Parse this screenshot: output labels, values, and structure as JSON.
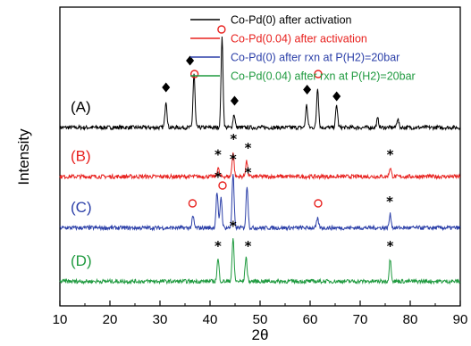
{
  "chart_data": {
    "type": "line",
    "title": "",
    "xlabel": "2θ",
    "ylabel": "Intensity",
    "xlim": [
      10,
      90
    ],
    "x_ticks": [
      "10",
      "20",
      "30",
      "40",
      "50",
      "60",
      "70",
      "80",
      "90"
    ],
    "grid": false,
    "legend_position": "top-right",
    "series": [
      {
        "name": "Co-Pd(0) after activation",
        "label": "(A)",
        "color": "#000000",
        "baseline": 4.0,
        "peaks": [
          [
            31.2,
            0.6
          ],
          [
            36.8,
            1.2
          ],
          [
            42.4,
            2.0
          ],
          [
            44.8,
            0.3
          ],
          [
            59.3,
            0.5
          ],
          [
            61.5,
            0.9
          ],
          [
            65.3,
            0.5
          ],
          [
            73.5,
            0.2
          ],
          [
            77.5,
            0.2
          ]
        ],
        "markers": [
          {
            "symbol": "◆",
            "x": 31.2,
            "level": 0.9
          },
          {
            "symbol": "◆",
            "x": 36.0,
            "level": 1.5
          },
          {
            "symbol": "o",
            "x": 36.9,
            "level": 1.2
          },
          {
            "symbol": "o",
            "x": 42.3,
            "level": 2.2
          },
          {
            "symbol": "◆",
            "x": 44.9,
            "level": 0.6
          },
          {
            "symbol": "◆",
            "x": 59.4,
            "level": 0.85
          },
          {
            "symbol": "o",
            "x": 61.6,
            "level": 1.2
          },
          {
            "symbol": "◆",
            "x": 65.3,
            "level": 0.7
          }
        ]
      },
      {
        "name": "Co-Pd(0.04) after activation",
        "label": "(B)",
        "color": "#e8221f",
        "baseline": 2.9,
        "peaks": [
          [
            41.6,
            0.2
          ],
          [
            44.6,
            0.55
          ],
          [
            47.3,
            0.35
          ],
          [
            76.0,
            0.2
          ]
        ],
        "markers": [
          {
            "symbol": "*",
            "x": 41.6,
            "level": 0.55
          },
          {
            "symbol": "*",
            "x": 44.7,
            "level": 0.9
          },
          {
            "symbol": "*",
            "x": 47.6,
            "level": 0.7
          },
          {
            "symbol": "*",
            "x": 76.0,
            "level": 0.55
          }
        ]
      },
      {
        "name": "Co-Pd(0) after rxn at P(H2)=20bar",
        "label": "(C)",
        "color": "#2b3fa8",
        "baseline": 1.75,
        "peaks": [
          [
            36.6,
            0.25
          ],
          [
            41.4,
            0.8
          ],
          [
            42.2,
            0.7
          ],
          [
            44.6,
            1.2
          ],
          [
            47.4,
            0.95
          ],
          [
            61.5,
            0.2
          ],
          [
            76.0,
            0.3
          ]
        ],
        "markers": [
          {
            "symbol": "o",
            "x": 36.5,
            "level": 0.55
          },
          {
            "symbol": "*",
            "x": 41.6,
            "level": 1.2
          },
          {
            "symbol": "o",
            "x": 42.5,
            "level": 0.95
          },
          {
            "symbol": "*",
            "x": 44.6,
            "level": 1.6
          },
          {
            "symbol": "*",
            "x": 47.6,
            "level": 1.3
          },
          {
            "symbol": "o",
            "x": 61.6,
            "level": 0.55
          },
          {
            "symbol": "*",
            "x": 75.9,
            "level": 0.65
          }
        ]
      },
      {
        "name": "Co-Pd(0.04) after rxn at P(H2)=20bar",
        "label": "(D)",
        "color": "#1f9a3f",
        "baseline": 0.55,
        "peaks": [
          [
            41.6,
            0.5
          ],
          [
            44.6,
            0.95
          ],
          [
            47.2,
            0.55
          ],
          [
            76.0,
            0.5
          ]
        ],
        "markers": [
          {
            "symbol": "*",
            "x": 41.6,
            "level": 0.85
          },
          {
            "symbol": "*",
            "x": 44.6,
            "level": 1.3
          },
          {
            "symbol": "*",
            "x": 47.6,
            "level": 0.85
          },
          {
            "symbol": "*",
            "x": 76.0,
            "level": 0.85
          }
        ]
      }
    ]
  }
}
